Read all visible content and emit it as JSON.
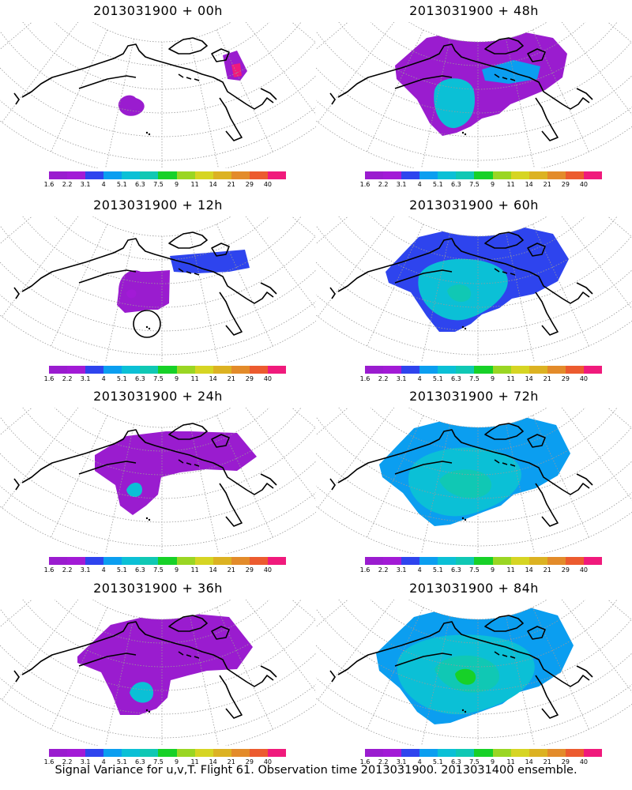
{
  "caption": "Signal Variance for u,v,T. Flight 61. Observation time 2013031900. 2013031400 ensemble.",
  "colorbar": {
    "labels": [
      "1.6",
      "2.2",
      "3.1",
      "4",
      "5.1",
      "6.3",
      "7.5",
      "9",
      "11",
      "14",
      "21",
      "29",
      "40"
    ],
    "colors": [
      "#9a1ccf",
      "#a21ad6",
      "#2e44ee",
      "#0b9ef0",
      "#0bc0d6",
      "#10c8b4",
      "#17d128",
      "#9ad623",
      "#d6d523",
      "#dcb222",
      "#e38b2a",
      "#ec5b2f",
      "#f01a7c"
    ]
  },
  "map_colors": {
    "coast": "#000000",
    "grid": "#9a9a9a"
  },
  "panels": [
    {
      "title": "2013031900 + 00h",
      "level": 0
    },
    {
      "title": "2013031900 + 48h",
      "level": 4
    },
    {
      "title": "2013031900 + 12h",
      "level": 1
    },
    {
      "title": "2013031900 + 60h",
      "level": 5
    },
    {
      "title": "2013031900 + 24h",
      "level": 2
    },
    {
      "title": "2013031900 + 72h",
      "level": 6
    },
    {
      "title": "2013031900 + 36h",
      "level": 3
    },
    {
      "title": "2013031900 + 84h",
      "level": 7
    }
  ]
}
